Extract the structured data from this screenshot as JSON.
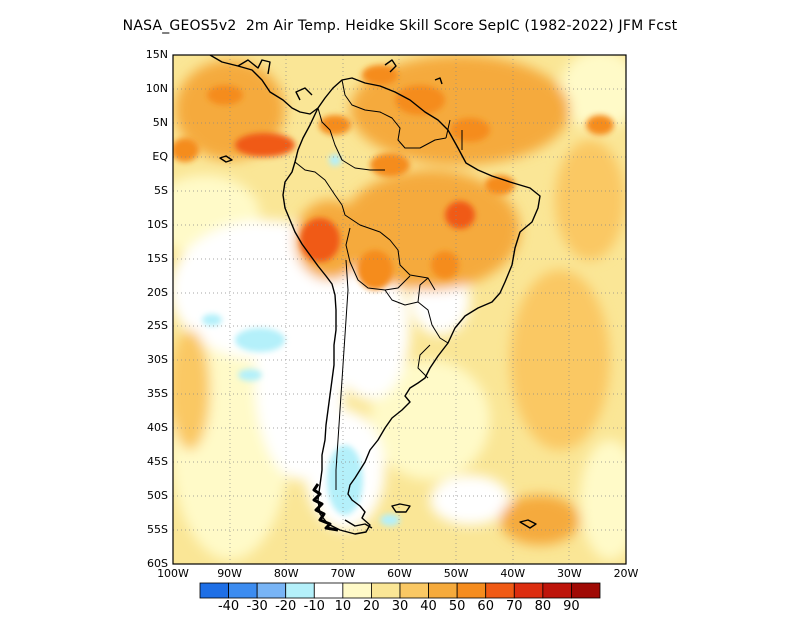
{
  "title": "NASA_GEOS5v2  2m Air Temp. Heidke Skill Score SepIC (1982-2022) JFM Fcst",
  "map": {
    "lat_labels": [
      "15N",
      "10N",
      "5N",
      "EQ",
      "5S",
      "10S",
      "15S",
      "20S",
      "25S",
      "30S",
      "35S",
      "40S",
      "45S",
      "50S",
      "55S",
      "60S"
    ],
    "lon_labels": [
      "100W",
      "90W",
      "80W",
      "70W",
      "60W",
      "50W",
      "40W",
      "30W",
      "20W"
    ],
    "lat_range": [
      -60,
      15
    ],
    "lon_range": [
      -100,
      -20
    ],
    "grid": "dotted",
    "projection": "lat-lon"
  },
  "colorbar": {
    "colors": [
      "#1e6fe6",
      "#3c8cf0",
      "#78b4f5",
      "#b4f0fa",
      "#ffffff",
      "#fffac8",
      "#fae696",
      "#fac864",
      "#f5aa3c",
      "#f58c1e",
      "#f05a14",
      "#dc2d0f",
      "#be140a",
      "#a00a05"
    ],
    "labels": [
      "-40",
      "-30",
      "-20",
      "-10",
      "10",
      "20",
      "30",
      "40",
      "50",
      "60",
      "70",
      "80",
      "90"
    ]
  }
}
